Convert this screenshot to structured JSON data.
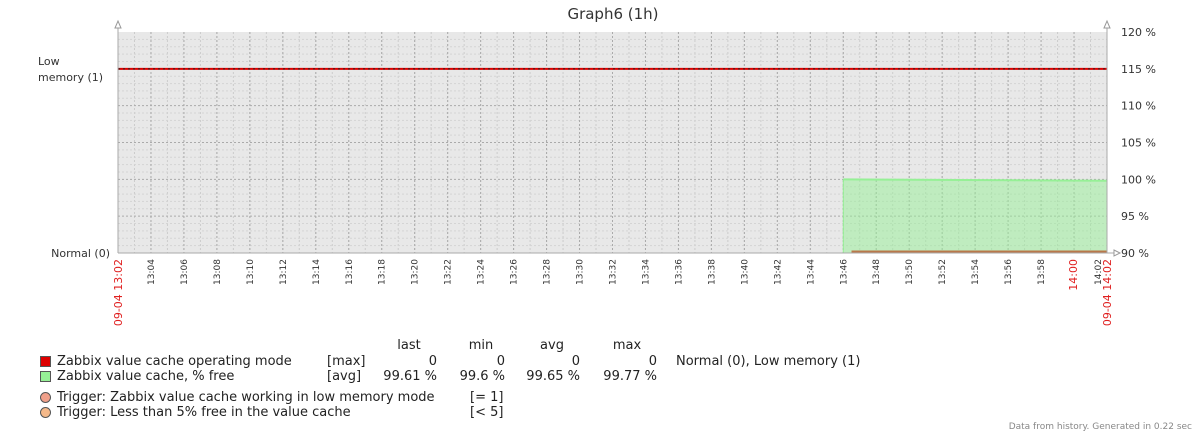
{
  "chart_data": {
    "type": "line",
    "title": "Graph6 (1h)",
    "x_range": [
      "09-04 13:02",
      "09-04 14:02"
    ],
    "x_start_label": "09-04 13:02",
    "x_end_label": "09-04 14:02",
    "x_ticks": [
      "13:04",
      "13:06",
      "13:08",
      "13:10",
      "13:12",
      "13:14",
      "13:16",
      "13:18",
      "13:20",
      "13:22",
      "13:24",
      "13:26",
      "13:28",
      "13:30",
      "13:32",
      "13:34",
      "13:36",
      "13:38",
      "13:40",
      "13:42",
      "13:44",
      "13:46",
      "13:48",
      "13:50",
      "13:52",
      "13:54",
      "13:56",
      "13:58",
      "14:00",
      "14:02"
    ],
    "x_highlight_ticks": [
      "14:00"
    ],
    "right_axis": {
      "ticks": [
        "120 %",
        "115 %",
        "110 %",
        "105 %",
        "100 %",
        "95 %",
        "90 %"
      ],
      "ylim": [
        90,
        120
      ]
    },
    "left_axis": {
      "labels": [
        {
          "text": "Low memory (1)",
          "lines": [
            "Low",
            "memory (1)"
          ],
          "value": 1
        },
        {
          "text": "Normal (0)",
          "lines": [
            "Normal (0)"
          ],
          "value": 0
        }
      ]
    },
    "grid": true,
    "series": [
      {
        "name": "Zabbix value cache operating mode",
        "func": "[max]",
        "color": "#dd0000",
        "axis": "left",
        "x": [
          "13:46:30",
          "14:02"
        ],
        "values": [
          0,
          0
        ]
      },
      {
        "name": "Zabbix value cache, % free",
        "func": "[avg]",
        "color": "#96f096",
        "axis": "right",
        "style": "filled",
        "x": [
          "13:46",
          "14:02"
        ],
        "values": [
          100,
          99.8
        ]
      }
    ],
    "trigger_lines": [
      {
        "name": "Zabbix value cache working in low memory mode",
        "condition": "[= 1]",
        "axis": "left",
        "value": 1,
        "color": "#dd0000"
      }
    ]
  },
  "legend": {
    "headers": {
      "last": "last",
      "min": "min",
      "avg": "avg",
      "max": "max"
    },
    "items": [
      {
        "color": "#dd0000",
        "name": "Zabbix value cache operating mode",
        "func": "[max]",
        "last": "0",
        "min": "0",
        "avg": "0",
        "max": "0",
        "extra": "Normal (0), Low memory (1)"
      },
      {
        "color": "#96f096",
        "name": "Zabbix value cache, % free",
        "func": "[avg]",
        "last": "99.61 %",
        "min": "99.6 %",
        "avg": "99.65 %",
        "max": "99.77 %",
        "extra": ""
      }
    ],
    "triggers": [
      {
        "color": "#f0a08a",
        "label": "Trigger: Zabbix value cache working in low memory mode",
        "condition": "[= 1]"
      },
      {
        "color": "#f5b98a",
        "label": "Trigger: Less than 5% free in the value cache",
        "condition": "[< 5]"
      }
    ]
  },
  "footer": {
    "text": "Data from history. Generated in 0.22 sec"
  }
}
